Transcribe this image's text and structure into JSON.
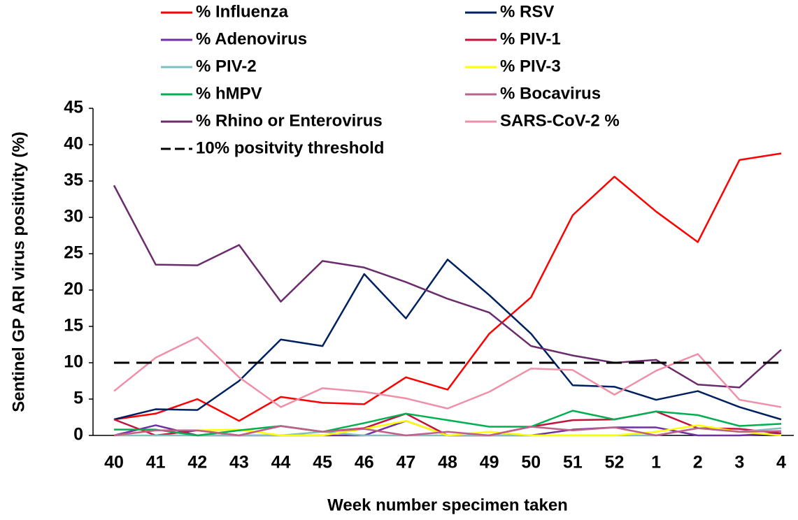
{
  "chart_data": {
    "type": "line",
    "x_label": "Week number specimen taken",
    "y_label": "Sentinel GP ARI virus positivity (%)",
    "categories": [
      "40",
      "41",
      "42",
      "43",
      "44",
      "45",
      "46",
      "47",
      "48",
      "49",
      "50",
      "51",
      "52",
      "1",
      "2",
      "3",
      "4"
    ],
    "ylim": [
      0,
      45
    ],
    "yticks": [
      0,
      5,
      10,
      15,
      20,
      25,
      30,
      35,
      40,
      45
    ],
    "series": [
      {
        "name": "% Influenza",
        "color": "#ff0000",
        "values": [
          2.2,
          3.0,
          5.0,
          2.0,
          5.3,
          4.5,
          4.3,
          8.0,
          6.3,
          14.0,
          19.0,
          30.3,
          35.6,
          30.8,
          26.6,
          37.9,
          38.8
        ]
      },
      {
        "name": "% RSV",
        "color": "#002060",
        "values": [
          2.2,
          3.6,
          3.5,
          7.5,
          13.2,
          12.3,
          22.2,
          16.1,
          24.2,
          19.3,
          14.0,
          6.9,
          6.7,
          4.9,
          6.1,
          3.9,
          2.2
        ]
      },
      {
        "name": "% Adenovirus",
        "color": "#7030a0",
        "values": [
          0,
          1.4,
          0,
          0,
          0,
          0,
          0,
          2.0,
          0,
          0,
          0,
          0.8,
          1.1,
          1.1,
          0,
          0,
          0.3
        ]
      },
      {
        "name": "% PIV-1",
        "color": "#c0143c",
        "values": [
          2.2,
          0,
          0.7,
          0,
          1.3,
          0.5,
          1.0,
          3.0,
          0,
          0,
          1.2,
          2.1,
          2.2,
          3.3,
          1.0,
          0.9,
          0.3
        ]
      },
      {
        "name": "% PIV-2",
        "color": "#7fbfbf",
        "values": [
          0,
          0,
          0,
          0,
          0,
          0.5,
          0,
          0,
          0,
          0,
          0,
          0,
          0,
          0,
          1.0,
          0.5,
          1.0
        ]
      },
      {
        "name": "% PIV-3",
        "color": "#ffff00",
        "values": [
          0,
          0.7,
          0.7,
          0.8,
          0,
          0,
          0.9,
          2.0,
          0,
          0.5,
          0,
          0,
          0,
          0.5,
          1.4,
          0.5,
          0
        ]
      },
      {
        "name": "% hMPV",
        "color": "#00b050",
        "values": [
          0.8,
          0.8,
          0,
          0.7,
          1.3,
          0.5,
          1.7,
          3.0,
          2.1,
          1.2,
          1.2,
          3.4,
          2.2,
          3.3,
          2.8,
          1.3,
          1.6
        ]
      },
      {
        "name": "% Bocavirus",
        "color": "#c0608a",
        "values": [
          0,
          0.7,
          0.7,
          0,
          1.3,
          0.5,
          0.9,
          0,
          0.5,
          0,
          1.2,
          0.7,
          1.1,
          0,
          1.0,
          0.5,
          0.6
        ]
      },
      {
        "name": "% Rhino or Enterovirus",
        "color": "#6b2c6e",
        "values": [
          34.4,
          23.5,
          23.4,
          26.2,
          18.4,
          24.0,
          23.1,
          21.1,
          18.8,
          16.9,
          12.3,
          11.0,
          10.0,
          10.4,
          7.0,
          6.6,
          11.8
        ]
      },
      {
        "name": "SARS-CoV-2 %",
        "color": "#f090a8",
        "values": [
          6.1,
          10.7,
          13.5,
          8.0,
          3.9,
          6.5,
          6.0,
          5.1,
          3.7,
          6.0,
          9.2,
          9.0,
          5.6,
          8.9,
          11.2,
          4.9,
          3.9
        ]
      },
      {
        "name": "10% positvity threshold",
        "color": "#000000",
        "dashed": true,
        "values": [
          10,
          10,
          10,
          10,
          10,
          10,
          10,
          10,
          10,
          10,
          10,
          10,
          10,
          10,
          10,
          10,
          10
        ]
      }
    ]
  }
}
